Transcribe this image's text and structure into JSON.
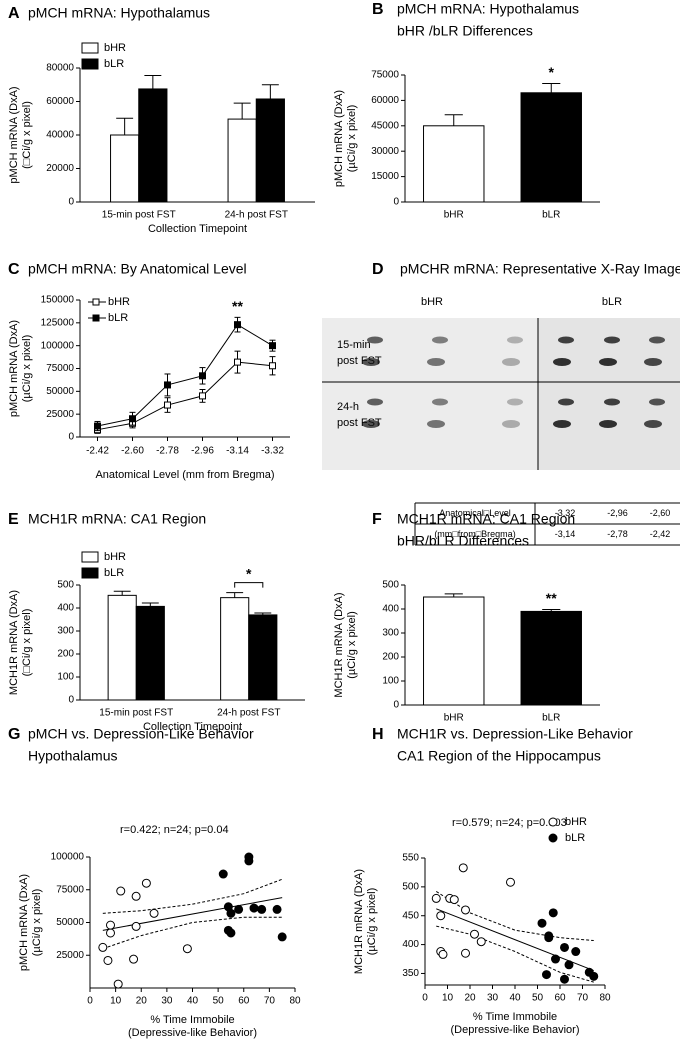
{
  "chart_data": [
    {
      "panel": "A",
      "type": "bar",
      "title": "pMCH mRNA: Hypothalamus",
      "categories": [
        "15-min post FST",
        "24-h post FST"
      ],
      "series": [
        {
          "name": "bHR",
          "color": "#ffffff",
          "values": [
            40000,
            49500
          ],
          "errors": [
            10000,
            9500
          ]
        },
        {
          "name": "bLR",
          "color": "#000000",
          "values": [
            67500,
            61500
          ],
          "errors": [
            8000,
            8500
          ]
        }
      ],
      "ylim": [
        0,
        80000
      ],
      "yticks": [
        0,
        20000,
        40000,
        60000,
        80000
      ],
      "xlabel": "Collection Timepoint",
      "ylabel": [
        "pMCH mRNA (DxA)",
        "(□Ci/g x pixel)"
      ],
      "legend": "upper left"
    },
    {
      "panel": "B",
      "type": "bar",
      "title": "pMCH mRNA: Hypothalamus",
      "subtitle": "bHR /bLR Differences",
      "categories": [
        "bHR",
        "bLR"
      ],
      "values": [
        45000,
        64500
      ],
      "errors": [
        6500,
        5500
      ],
      "colors": [
        "#ffffff",
        "#000000"
      ],
      "ylim": [
        0,
        75000
      ],
      "yticks": [
        0,
        15000,
        30000,
        45000,
        60000,
        75000
      ],
      "ylabel": [
        "pMCH mRNA (DxA)",
        "(µCi/g x pixel)"
      ],
      "annotation": "*"
    },
    {
      "panel": "C",
      "type": "line",
      "title": "pMCH mRNA: By Anatomical Level",
      "categories": [
        "-2.42",
        "-2.60",
        "-2.78",
        "-2.96",
        "-3.14",
        "-3.32"
      ],
      "series": [
        {
          "name": "bHR",
          "color": "#000000",
          "fill": "#ffffff",
          "values": [
            8000,
            15000,
            35000,
            45000,
            82000,
            78000
          ],
          "errors": [
            4000,
            5000,
            8000,
            7000,
            12000,
            10000
          ]
        },
        {
          "name": "bLR",
          "color": "#000000",
          "fill": "#000000",
          "values": [
            12000,
            20000,
            57000,
            67000,
            123000,
            100000
          ],
          "errors": [
            5000,
            7000,
            12000,
            9000,
            8000,
            6000
          ]
        }
      ],
      "ylim": [
        0,
        150000
      ],
      "yticks": [
        0,
        25000,
        50000,
        75000,
        100000,
        125000,
        150000
      ],
      "xlabel": "Anatomical Level (mm from Bregma)",
      "ylabel": [
        "pMCH mRNA (DxA)",
        "(µCi/g x pixel)"
      ],
      "annotation": "**",
      "legend": "upper left"
    },
    {
      "panel": "E",
      "type": "bar",
      "title": "MCH1R mRNA: CA1 Region",
      "categories": [
        "15-min post FST",
        "24-h post FST"
      ],
      "series": [
        {
          "name": "bHR",
          "color": "#ffffff",
          "values": [
            455,
            445
          ],
          "errors": [
            18,
            22
          ]
        },
        {
          "name": "bLR",
          "color": "#000000",
          "values": [
            407,
            370
          ],
          "errors": [
            15,
            8
          ]
        }
      ],
      "ylim": [
        0,
        500
      ],
      "yticks": [
        0,
        100,
        200,
        300,
        400,
        500
      ],
      "xlabel": "Collection Timepoint",
      "ylabel": [
        "MCH1R mRNA (DxA)",
        "(□Ci/g x pixel)"
      ],
      "annotation": "*",
      "legend": "upper left"
    },
    {
      "panel": "F",
      "type": "bar",
      "title": "MCH1R mRNA: CA1 Region",
      "subtitle": "bHR/bLR Differences",
      "categories": [
        "bHR",
        "bLR"
      ],
      "values": [
        450,
        390
      ],
      "errors": [
        13,
        8
      ],
      "colors": [
        "#ffffff",
        "#000000"
      ],
      "ylim": [
        0,
        500
      ],
      "yticks": [
        0,
        100,
        200,
        300,
        400,
        500
      ],
      "ylabel": [
        "MCH1R mRNA (DxA)",
        "(µCi/g x pixel)"
      ],
      "annotation": "**"
    },
    {
      "panel": "G",
      "type": "scatter",
      "title": "pMCH vs. Depression-Like Behavior",
      "subtitle": "Hypothalamus",
      "series": [
        {
          "color": "#000000",
          "fill": "#ffffff",
          "x": [
            5,
            7,
            8,
            8,
            11,
            12,
            17,
            18,
            18,
            22,
            25,
            38
          ],
          "y": [
            31000,
            21000,
            42000,
            48000,
            3000,
            74000,
            22000,
            47000,
            70000,
            80000,
            57000,
            30000
          ]
        },
        {
          "color": "#000000",
          "fill": "#000000",
          "x": [
            52,
            54,
            54,
            55,
            55,
            58,
            62,
            62,
            64,
            67,
            73,
            75
          ],
          "y": [
            87000,
            62000,
            44000,
            42000,
            57000,
            60000,
            97000,
            100000,
            61000,
            60000,
            60000,
            39000
          ]
        }
      ],
      "fit": {
        "x": [
          5,
          75
        ],
        "y": [
          44000,
          69000
        ]
      },
      "ci_upper": {
        "x": [
          5,
          20,
          40,
          60,
          75
        ],
        "y": [
          57000,
          59000,
          64000,
          72000,
          83000
        ]
      },
      "ci_lower": {
        "x": [
          5,
          20,
          40,
          60,
          75
        ],
        "y": [
          30000,
          40000,
          50000,
          54000,
          54000
        ]
      },
      "xlim": [
        0,
        80
      ],
      "xticks": [
        0,
        10,
        20,
        30,
        40,
        50,
        60,
        70,
        80
      ],
      "ylim": [
        0,
        100000
      ],
      "yticks": [
        25000,
        50000,
        75000,
        100000
      ],
      "xlabel": [
        "% Time Immobile",
        "(Depressive-like Behavior)"
      ],
      "ylabel": [
        "pMCH mRNA (DxA)",
        "(µCi/g x pixel)"
      ],
      "annotation": "r=0.422; n=24; p=0.04"
    },
    {
      "panel": "H",
      "type": "scatter",
      "title": "MCH1R vs. Depression-Like Behavior",
      "subtitle": "CA1 Region of the Hippocampus",
      "series": [
        {
          "name": "bHR",
          "color": "#000000",
          "fill": "#ffffff",
          "x": [
            5,
            7,
            7,
            8,
            11,
            13,
            17,
            18,
            18,
            22,
            25,
            38
          ],
          "y": [
            480,
            450,
            388,
            383,
            480,
            478,
            533,
            460,
            385,
            418,
            405,
            508
          ]
        },
        {
          "name": "bLR",
          "color": "#000000",
          "fill": "#000000",
          "x": [
            52,
            54,
            55,
            55,
            57,
            58,
            62,
            62,
            64,
            67,
            73,
            75
          ],
          "y": [
            437,
            348,
            412,
            415,
            455,
            375,
            395,
            340,
            365,
            388,
            352,
            345
          ]
        }
      ],
      "fit": {
        "x": [
          5,
          75
        ],
        "y": [
          462,
          355
        ]
      },
      "ci_upper": {
        "x": [
          5,
          20,
          40,
          60,
          75
        ],
        "y": [
          492,
          455,
          425,
          412,
          407
        ]
      },
      "ci_lower": {
        "x": [
          5,
          20,
          40,
          60,
          75
        ],
        "y": [
          432,
          418,
          388,
          352,
          335
        ]
      },
      "xlim": [
        0,
        80
      ],
      "xticks": [
        0,
        10,
        20,
        30,
        40,
        50,
        60,
        70,
        80
      ],
      "ylim": [
        330,
        550
      ],
      "yticks": [
        350,
        400,
        450,
        500,
        550
      ],
      "xlabel": [
        "% Time Immobile",
        "(Depressive-like Behavior)"
      ],
      "ylabel": [
        "MCH1R mRNA (DxA)",
        "(µCi/g x pixel)"
      ],
      "annotation": "r=0.579; n=24; p=0.003",
      "legend": "upper right"
    }
  ],
  "panel_d": {
    "panel": "D",
    "title": "pMCHR mRNA: Representative X-Ray Images",
    "columns": [
      "bHR",
      "bLR"
    ],
    "rows": [
      [
        "15-min",
        "post FST"
      ],
      [
        "24-h",
        "post FST"
      ]
    ],
    "table": [
      [
        "Anatomical□Level",
        "-3,32",
        "-2,96",
        "-2,60"
      ],
      [
        "(mm□from□Bregma)",
        "-3,14",
        "-2,78",
        "-2,42"
      ]
    ]
  }
}
